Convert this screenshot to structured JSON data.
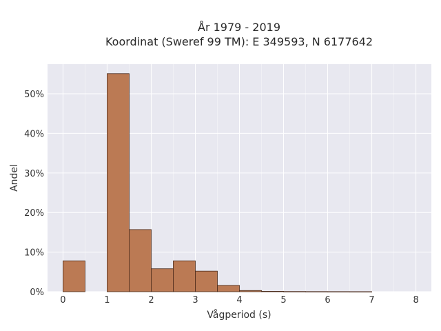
{
  "chart_data": {
    "type": "bar",
    "title_line1": "År 1979 - 2019",
    "title_line2": "Koordinat (Sweref 99 TM): E 349593, N 6177642",
    "xlabel": "Vågperiod (s)",
    "ylabel": "Andel",
    "xlim": [
      -0.35,
      8.35
    ],
    "ylim": [
      0,
      0.575
    ],
    "xticks": [
      0,
      1,
      2,
      3,
      4,
      5,
      6,
      7,
      8
    ],
    "yticks": [
      0,
      0.1,
      0.2,
      0.3,
      0.4,
      0.5
    ],
    "ytick_labels": [
      "0%",
      "10%",
      "20%",
      "30%",
      "40%",
      "50%"
    ],
    "grid": true,
    "bin_width": 0.5,
    "bins": [
      {
        "x0": 0.0,
        "value": 0.078
      },
      {
        "x0": 0.5,
        "value": 0.0
      },
      {
        "x0": 1.0,
        "value": 0.551
      },
      {
        "x0": 1.5,
        "value": 0.157
      },
      {
        "x0": 2.0,
        "value": 0.058
      },
      {
        "x0": 2.5,
        "value": 0.078
      },
      {
        "x0": 3.0,
        "value": 0.052
      },
      {
        "x0": 3.5,
        "value": 0.016
      },
      {
        "x0": 4.0,
        "value": 0.003
      },
      {
        "x0": 4.5,
        "value": 0.001
      },
      {
        "x0": 5.0,
        "value": 0.0005
      },
      {
        "x0": 5.5,
        "value": 0.0003
      },
      {
        "x0": 6.0,
        "value": 0.0002
      },
      {
        "x0": 6.5,
        "value": 0.0001
      }
    ],
    "bar_color": "#bb7a54",
    "bar_edge_color": "#4a2a1a",
    "plot_bg": "#e8e8f0",
    "grid_color": "#ffffff"
  }
}
